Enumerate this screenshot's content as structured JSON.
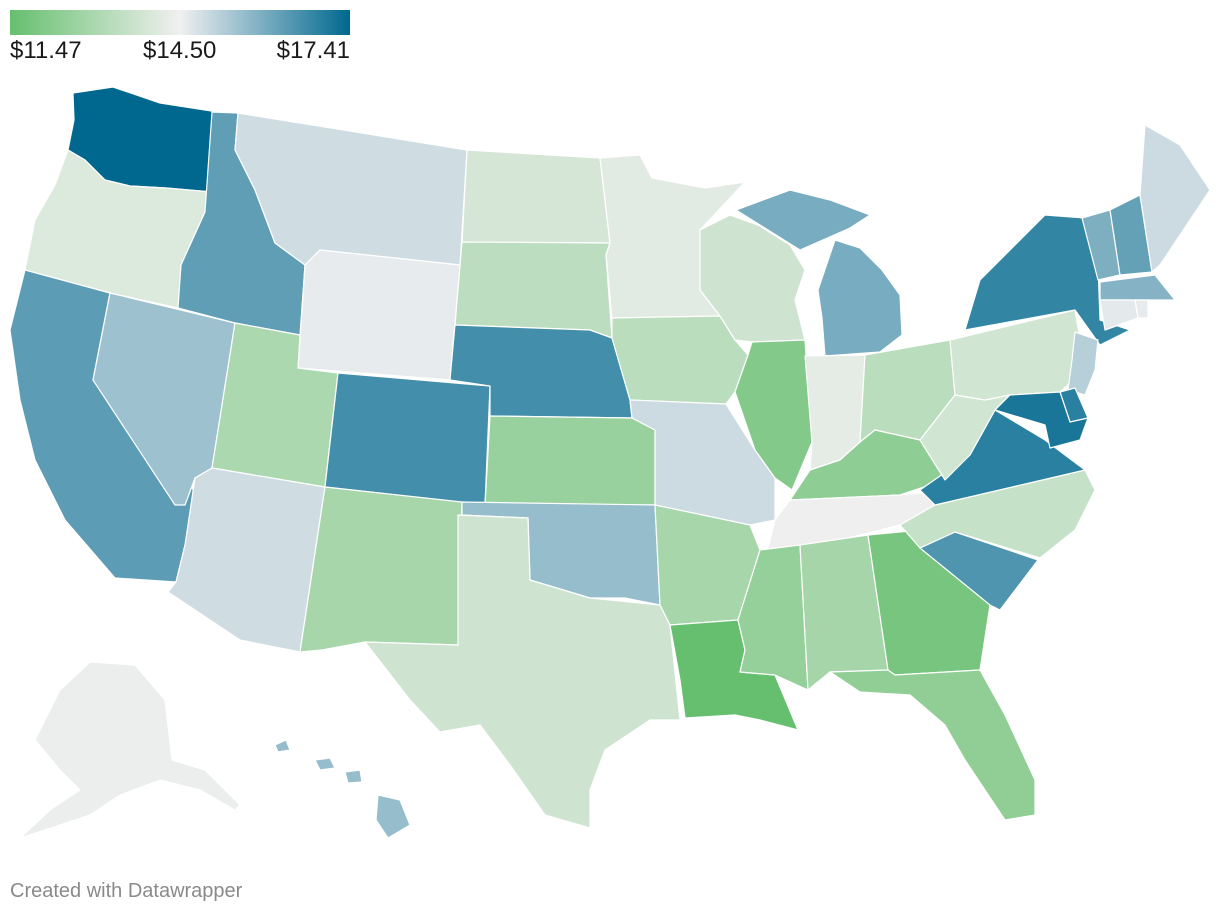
{
  "legend": {
    "min_label": "$11.47",
    "mid_label": "$14.50",
    "max_label": "$17.41",
    "min_color": "#66bf6e",
    "mid_color": "#f0f0f0",
    "max_color": "#00688f",
    "scale_min": 11.47,
    "scale_mid": 14.5,
    "scale_max": 17.41
  },
  "credit": "Created with Datawrapper",
  "state_values": {
    "WA": 17.41,
    "OR": 14.05,
    "CA": 16.3,
    "NV": 15.5,
    "ID": 16.25,
    "MT": 14.9,
    "WY": 14.6,
    "UT": 13.0,
    "AZ": 14.9,
    "CO": 16.6,
    "NM": 12.9,
    "ND": 13.9,
    "SD": 13.35,
    "NE": 16.6,
    "KS": 12.6,
    "OK": 15.6,
    "TX": 13.75,
    "MN": 14.2,
    "IA": 13.3,
    "MO": 14.95,
    "AR": 12.9,
    "LA": 11.47,
    "WI": 13.75,
    "IL": 12.1,
    "MI": 15.95,
    "IN": 14.25,
    "OH": 13.3,
    "KY": 12.35,
    "TN": 14.45,
    "MS": 12.5,
    "AL": 12.85,
    "GA": 11.85,
    "FL": 12.4,
    "SC": 16.45,
    "NC": 13.55,
    "VA": 16.9,
    "WV": 13.8,
    "PA": 13.8,
    "NY": 16.8,
    "VT": 15.9,
    "NH": 16.2,
    "ME": 14.95,
    "MA": 15.8,
    "RI": 14.6,
    "CT": 14.65,
    "NJ": 15.2,
    "DE": 16.9,
    "MD": 17.1,
    "AK": 14.4,
    "HI": 15.6
  }
}
